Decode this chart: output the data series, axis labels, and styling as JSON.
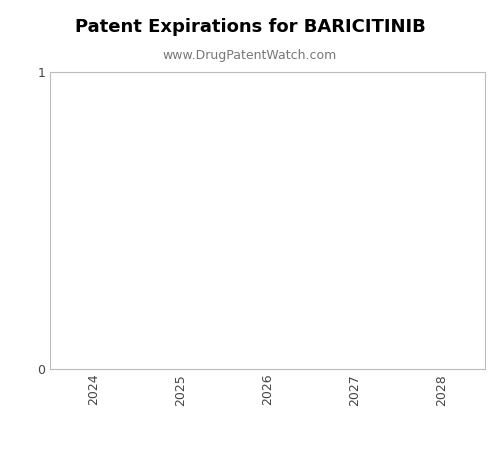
{
  "title": "Patent Expirations for BARICITINIB",
  "subtitle": "www.DrugPatentWatch.com",
  "title_fontsize": 13,
  "subtitle_fontsize": 9,
  "title_fontweight": "bold",
  "xlim": [
    2023.5,
    2028.5
  ],
  "ylim": [
    0,
    1
  ],
  "yticks": [
    0,
    1
  ],
  "xticks": [
    2024,
    2025,
    2026,
    2027,
    2028
  ],
  "xlabel": "",
  "ylabel": "",
  "background_color": "#ffffff",
  "plot_bg_color": "#ffffff",
  "spine_color": "#bbbbbb",
  "tick_label_color": "#444444",
  "subtitle_color": "#777777",
  "figure_size": [
    5.0,
    4.5
  ],
  "dpi": 100
}
